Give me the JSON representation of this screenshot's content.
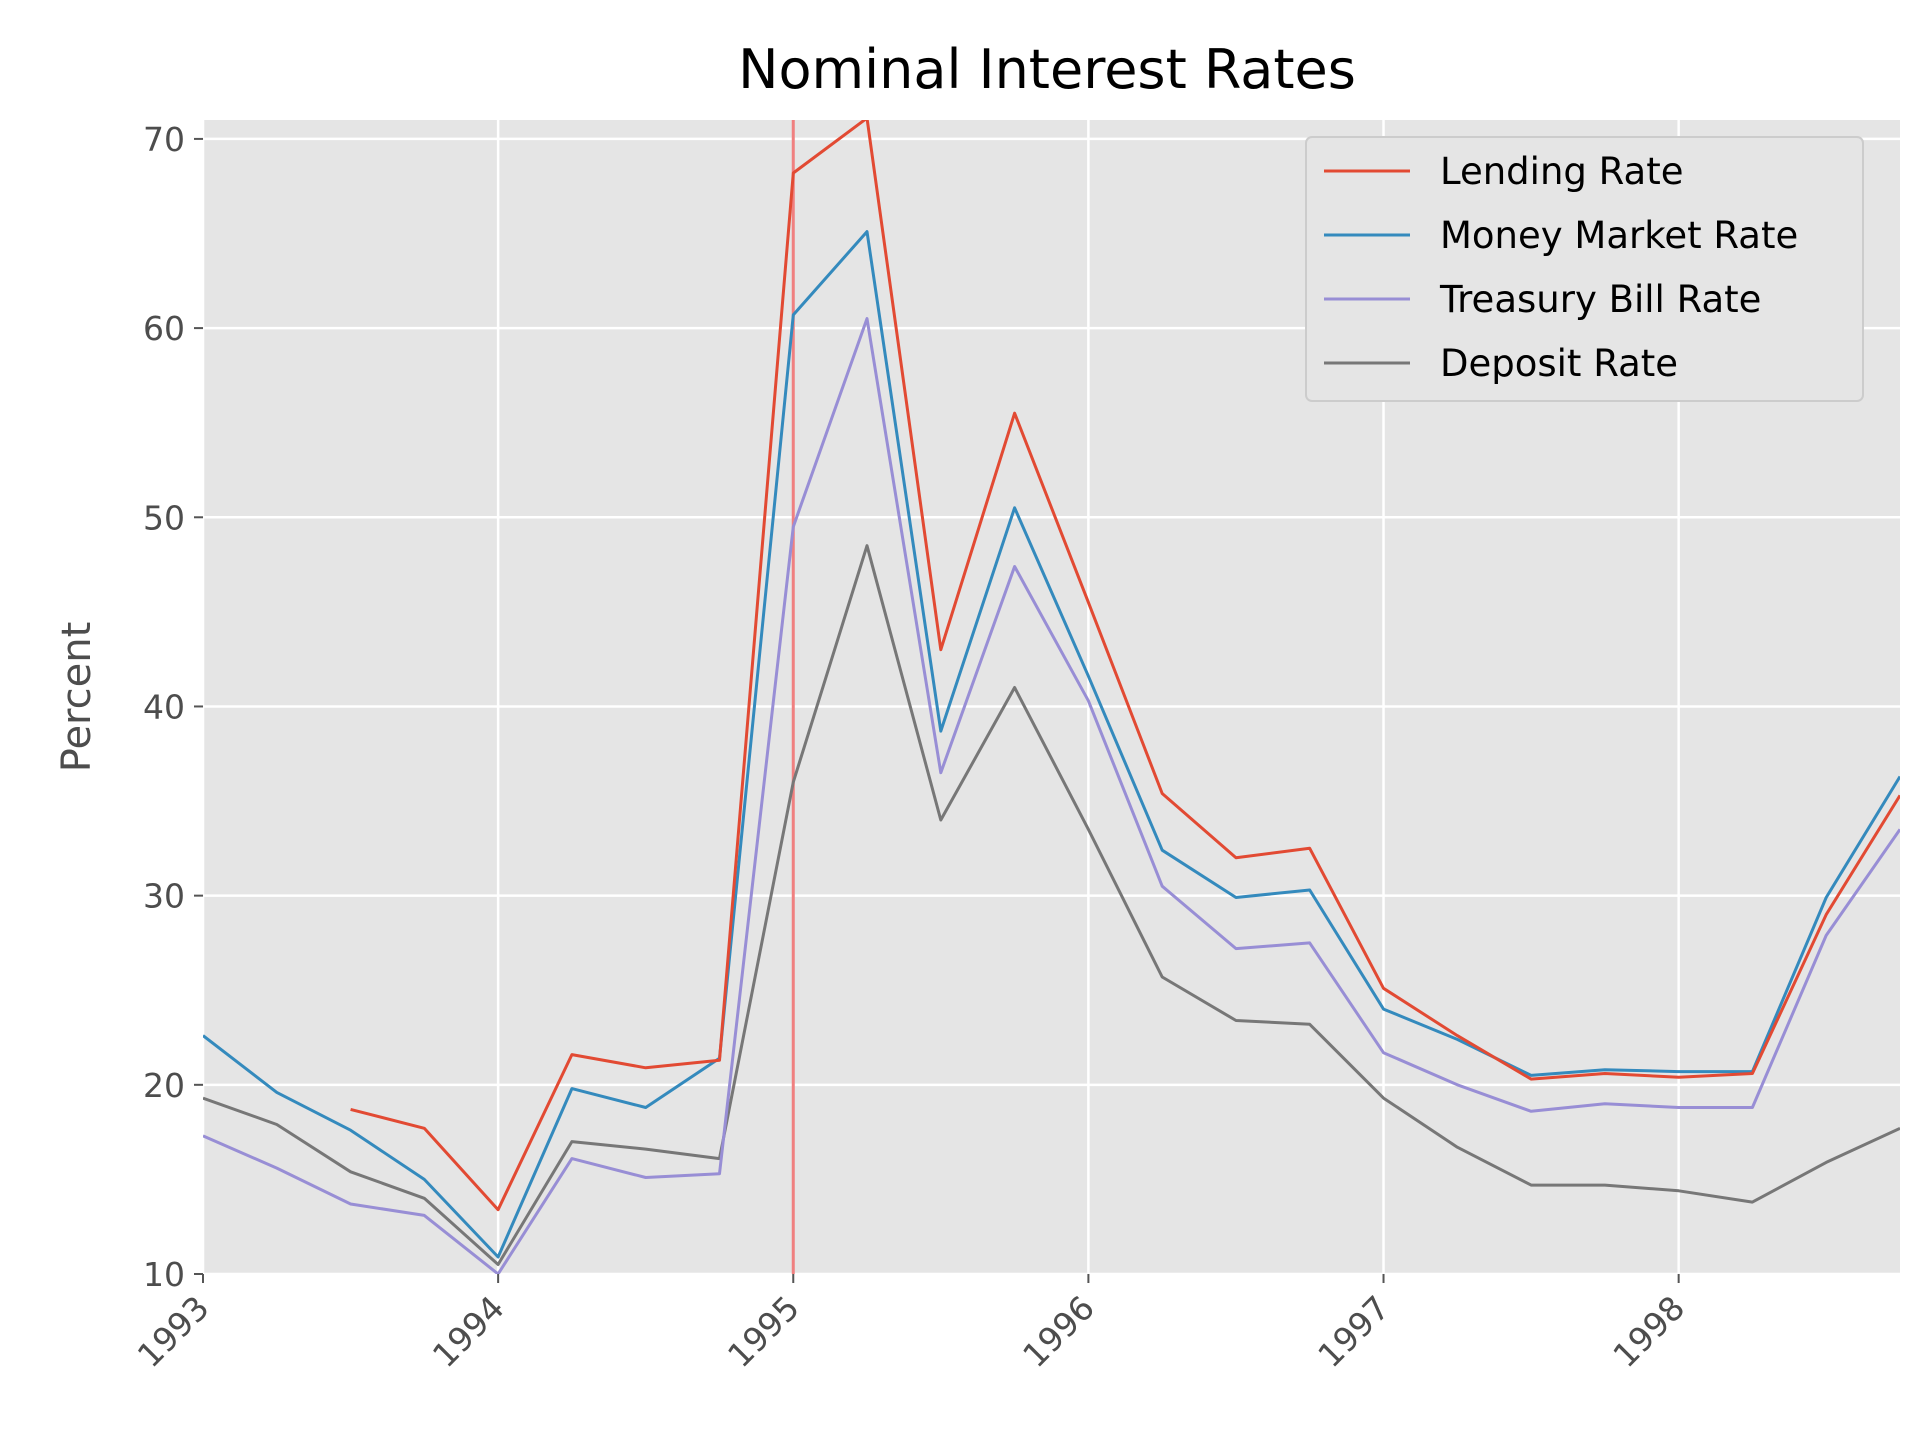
{
  "chart_data": {
    "type": "line",
    "title": "Nominal Interest Rates",
    "xlabel": "",
    "ylabel": "Percent",
    "x": [
      "1993-01",
      "1993-04",
      "1993-07",
      "1993-10",
      "1994-01",
      "1994-04",
      "1994-07",
      "1994-10",
      "1995-01",
      "1995-04",
      "1995-07",
      "1995-10",
      "1996-01",
      "1996-04",
      "1996-07",
      "1996-10",
      "1997-01",
      "1997-04",
      "1997-07",
      "1997-10",
      "1998-01",
      "1998-04",
      "1998-07",
      "1998-10"
    ],
    "xlim": [
      "1993-01",
      "1998-10"
    ],
    "xticks": [
      "1993",
      "1994",
      "1995",
      "1996",
      "1997",
      "1998"
    ],
    "x_tick_rotation": 45,
    "ylim": [
      10,
      71
    ],
    "yticks": [
      "10",
      "20",
      "30",
      "40",
      "50",
      "60",
      "70"
    ],
    "grid": true,
    "legend_position": "top-right",
    "series": [
      {
        "name": "Lending Rate",
        "color": "#E24A33",
        "values": [
          null,
          null,
          18.7,
          17.7,
          13.4,
          21.6,
          20.9,
          21.3,
          68.2,
          71.1,
          43.0,
          55.5,
          45.5,
          35.4,
          32.0,
          32.5,
          25.1,
          22.6,
          20.3,
          20.6,
          20.4,
          20.6,
          29.0,
          35.3
        ]
      },
      {
        "name": "Money Market Rate",
        "color": "#348ABD",
        "values": [
          22.6,
          19.6,
          17.6,
          15.0,
          10.9,
          19.8,
          18.8,
          21.4,
          60.7,
          65.1,
          38.7,
          50.5,
          41.6,
          32.4,
          29.9,
          30.3,
          24.0,
          22.4,
          20.5,
          20.8,
          20.7,
          20.7,
          29.9,
          36.3
        ]
      },
      {
        "name": "Treasury Bill Rate",
        "color": "#988ED5",
        "values": [
          17.3,
          15.6,
          13.7,
          13.1,
          10.0,
          16.1,
          15.1,
          15.3,
          49.5,
          60.5,
          36.5,
          47.4,
          40.3,
          30.5,
          27.2,
          27.5,
          21.7,
          20.0,
          18.6,
          19.0,
          18.8,
          18.8,
          27.9,
          33.5
        ]
      },
      {
        "name": "Deposit Rate",
        "color": "#777777",
        "values": [
          19.3,
          17.9,
          15.4,
          14.0,
          10.5,
          17.0,
          16.6,
          16.1,
          36.0,
          48.5,
          34.0,
          41.0,
          33.5,
          25.7,
          23.4,
          23.2,
          19.3,
          16.7,
          14.7,
          14.7,
          14.4,
          13.8,
          15.9,
          17.7
        ]
      }
    ],
    "vline": {
      "x": "1995-01",
      "color": "#F08080"
    }
  }
}
